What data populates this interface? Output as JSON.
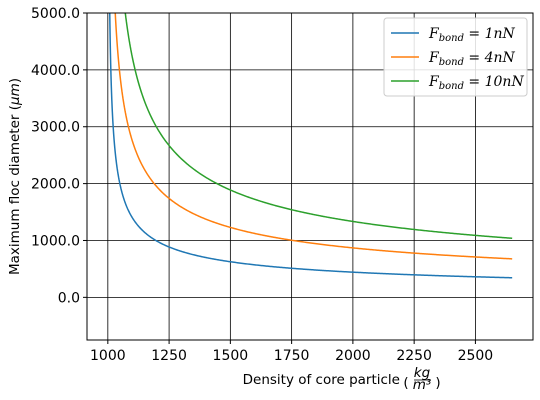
{
  "chart_data": {
    "type": "line",
    "title": "",
    "xlabel": "Density of core particle",
    "xlabel_unit_num": "kg",
    "xlabel_unit_den": "m³",
    "ylabel_text": "Maximum floc diameter",
    "ylabel_unit": "μm",
    "xlim": [
      915,
      2735
    ],
    "ylim": [
      -750,
      5000
    ],
    "x_ticks": [
      1000,
      1250,
      1500,
      1750,
      2000,
      2250,
      2500
    ],
    "x_tick_labels": [
      "1000",
      "1250",
      "1500",
      "1750",
      "2000",
      "2250",
      "2500"
    ],
    "y_ticks": [
      0,
      1000,
      2000,
      3000,
      4000,
      5000
    ],
    "y_tick_labels": [
      "0.0",
      "1000.0",
      "2000.0",
      "3000.0",
      "4000.0",
      "5000.0"
    ],
    "grid": true,
    "legend_position": "top-right",
    "x_domain": [
      1000,
      2650
    ],
    "model": "d = k / sqrt(x - 1000)",
    "series": [
      {
        "name_main": "F",
        "name_sub": "bond",
        "name_rest": " = 1nN",
        "color": "#1f77b4",
        "k": 14000
      },
      {
        "name_main": "F",
        "name_sub": "bond",
        "name_rest": " = 4nN",
        "color": "#ff7f0e",
        "k": 27500
      },
      {
        "name_main": "F",
        "name_sub": "bond",
        "name_rest": " = 10nN",
        "color": "#2ca02c",
        "k": 42200
      }
    ]
  }
}
